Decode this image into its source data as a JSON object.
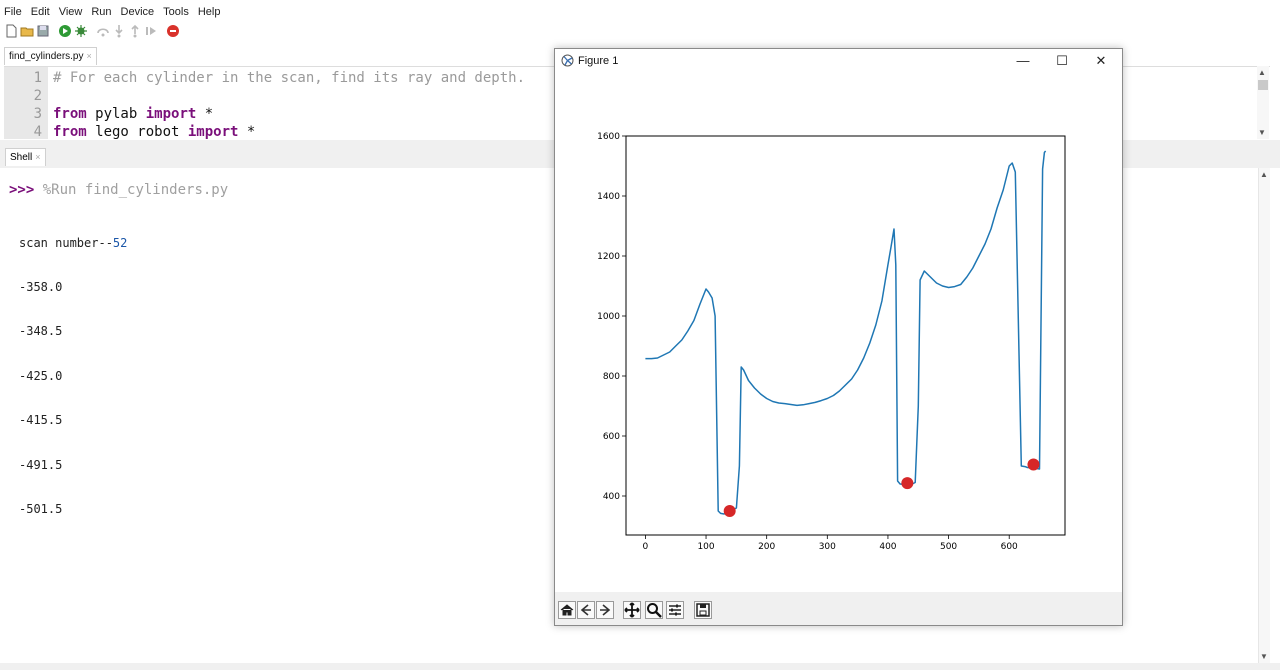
{
  "menu": [
    "File",
    "Edit",
    "View",
    "Run",
    "Device",
    "Tools",
    "Help"
  ],
  "toolbar": {
    "icons": [
      "new-file-icon",
      "open-file-icon",
      "save-icon",
      "run-icon",
      "debug-icon",
      "step-over-icon",
      "step-into-icon",
      "step-out-icon",
      "resume-icon",
      "stop-icon"
    ]
  },
  "editor": {
    "tab_label": "find_cylinders.py",
    "tab_close": "×",
    "lines": [
      {
        "n": "1",
        "parts": [
          {
            "t": "# For each cylinder in the scan, find its ray and depth.",
            "k": "cmt"
          }
        ]
      },
      {
        "n": "2",
        "parts": []
      },
      {
        "n": "3",
        "parts": [
          {
            "t": "from",
            "k": "kw"
          },
          {
            "t": " pylab ",
            "k": "plain"
          },
          {
            "t": "import",
            "k": "kw"
          },
          {
            "t": " *",
            "k": "plain"
          }
        ]
      },
      {
        "n": "4",
        "parts": [
          {
            "t": "from",
            "k": "kw"
          },
          {
            "t": " lego_robot ",
            "k": "plain"
          },
          {
            "t": "import",
            "k": "kw"
          },
          {
            "t": " *",
            "k": "plain"
          }
        ]
      }
    ]
  },
  "shell": {
    "tab_label": "Shell",
    "tab_close": "×",
    "prompt": ">>>",
    "command": " %Run find_cylinders.py",
    "output_prefix": "scan number--",
    "scan_number": "52",
    "values": [
      "-358.0",
      "-348.5",
      "-425.0",
      "-415.5",
      "-491.5",
      "-501.5"
    ]
  },
  "figure": {
    "title": "Figure 1",
    "minimize": "—",
    "maximize": "☐",
    "close": "✕",
    "tools": [
      "home-icon",
      "back-icon",
      "forward-icon",
      "pan-icon",
      "zoom-icon",
      "configure-subplots-icon",
      "save-figure-icon"
    ]
  },
  "chart_data": {
    "type": "line",
    "title": "",
    "xlabel": "",
    "ylabel": "",
    "xlim": [
      -32,
      692
    ],
    "ylim": [
      270,
      1600
    ],
    "xticks": [
      0,
      100,
      200,
      300,
      400,
      500,
      600
    ],
    "yticks": [
      400,
      600,
      800,
      1000,
      1200,
      1400,
      1600
    ],
    "line_color": "#1f77b4",
    "marker_color": "#d62728",
    "series": [
      {
        "x": [
          0,
          10,
          20,
          30,
          40,
          50,
          60,
          70,
          80,
          90,
          100,
          104,
          110,
          115,
          120,
          124,
          130,
          140,
          150,
          155,
          158,
          162,
          170,
          180,
          190,
          200,
          210,
          220,
          230,
          240,
          250,
          260,
          270,
          280,
          290,
          300,
          310,
          320,
          330,
          340,
          350,
          360,
          370,
          380,
          390,
          400,
          405,
          410,
          413,
          416,
          420,
          430,
          440,
          445,
          450,
          453,
          460,
          470,
          480,
          490,
          500,
          510,
          520,
          530,
          540,
          550,
          560,
          570,
          580,
          590,
          600,
          605,
          610,
          620,
          626,
          630,
          640,
          650,
          655,
          658,
          660
        ],
        "y": [
          858,
          858,
          860,
          870,
          880,
          900,
          920,
          950,
          985,
          1040,
          1090,
          1080,
          1060,
          1000,
          350,
          342,
          340,
          350,
          360,
          500,
          830,
          820,
          785,
          760,
          740,
          725,
          715,
          710,
          708,
          705,
          702,
          704,
          708,
          712,
          718,
          725,
          735,
          750,
          770,
          790,
          820,
          860,
          910,
          970,
          1050,
          1170,
          1230,
          1290,
          1170,
          450,
          440,
          438,
          440,
          445,
          700,
          1120,
          1150,
          1130,
          1110,
          1100,
          1095,
          1098,
          1105,
          1130,
          1160,
          1200,
          1240,
          1290,
          1360,
          1420,
          1500,
          1510,
          1480,
          500,
          498,
          495,
          493,
          490,
          1490,
          1545,
          1550
        ]
      }
    ],
    "markers": [
      {
        "x": 139,
        "y": 350
      },
      {
        "x": 432,
        "y": 443
      },
      {
        "x": 640,
        "y": 505
      }
    ]
  }
}
